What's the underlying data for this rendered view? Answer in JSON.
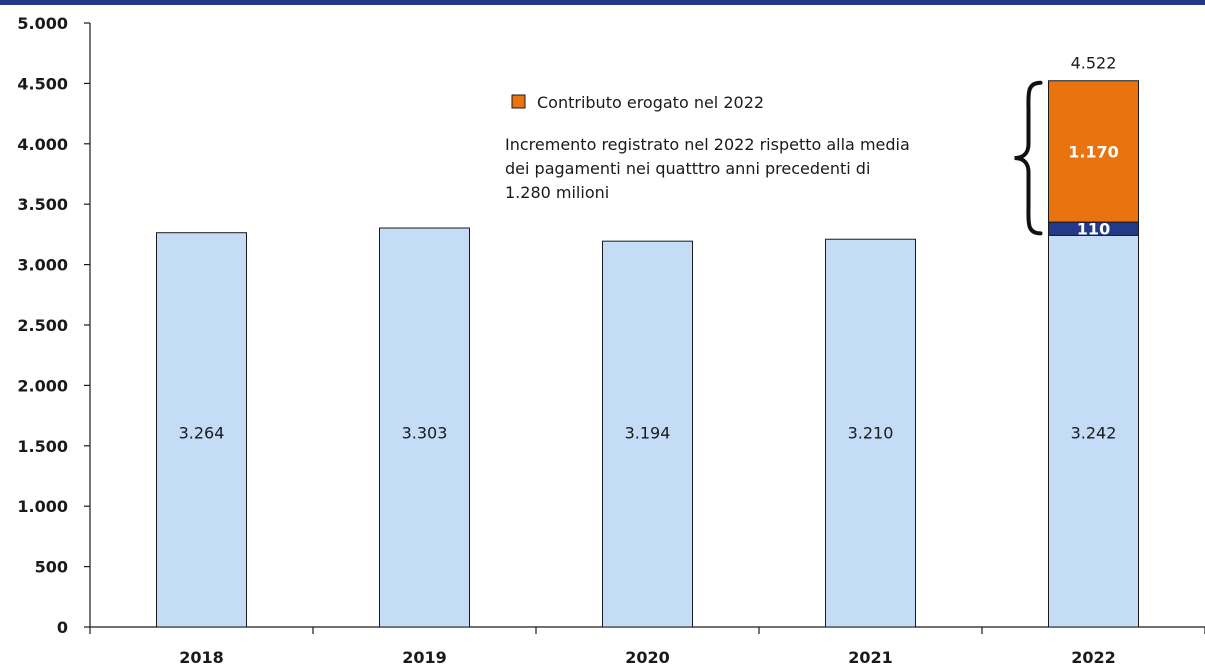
{
  "chart_data": {
    "type": "bar",
    "stacked": true,
    "categories": [
      "2018",
      "2019",
      "2020",
      "2021",
      "2022"
    ],
    "series": [
      {
        "values": [
          3264,
          3303,
          3194,
          3210,
          3242
        ],
        "labels": [
          "3.264",
          "3.303",
          "3.194",
          "3.210",
          "3.242"
        ],
        "color": "#c5dcf7"
      },
      {
        "values": [
          0,
          0,
          0,
          0,
          110
        ],
        "labels": [
          "",
          "",
          "",
          "",
          "110"
        ],
        "color": "#233a8a"
      },
      {
        "name": "Contributo erogato nel 2022",
        "values": [
          0,
          0,
          0,
          0,
          1170
        ],
        "labels": [
          "",
          "",
          "",
          "",
          "1.170"
        ],
        "color": "#e8730f"
      }
    ],
    "totals": {
      "2022": "4.522"
    },
    "ylim": [
      0,
      5000
    ],
    "yticks": [
      0,
      500,
      1000,
      1500,
      2000,
      2500,
      3000,
      3500,
      4000,
      4500,
      5000
    ],
    "ytick_labels": [
      "0",
      "500",
      "1.000",
      "1.500",
      "2.000",
      "2.500",
      "3.000",
      "3.500",
      "4.000",
      "4.500",
      "5.000"
    ],
    "legend": {
      "placement": "top-right",
      "label": "Contributo erogato nel 2022"
    },
    "annotation": [
      "Incremento registrato nel 2022 rispetto alla media",
      "dei pagamenti nei quatttro anni precedenti di",
      "1.280 milioni"
    ],
    "top_bar_color": "#233a8a",
    "grid": false
  }
}
